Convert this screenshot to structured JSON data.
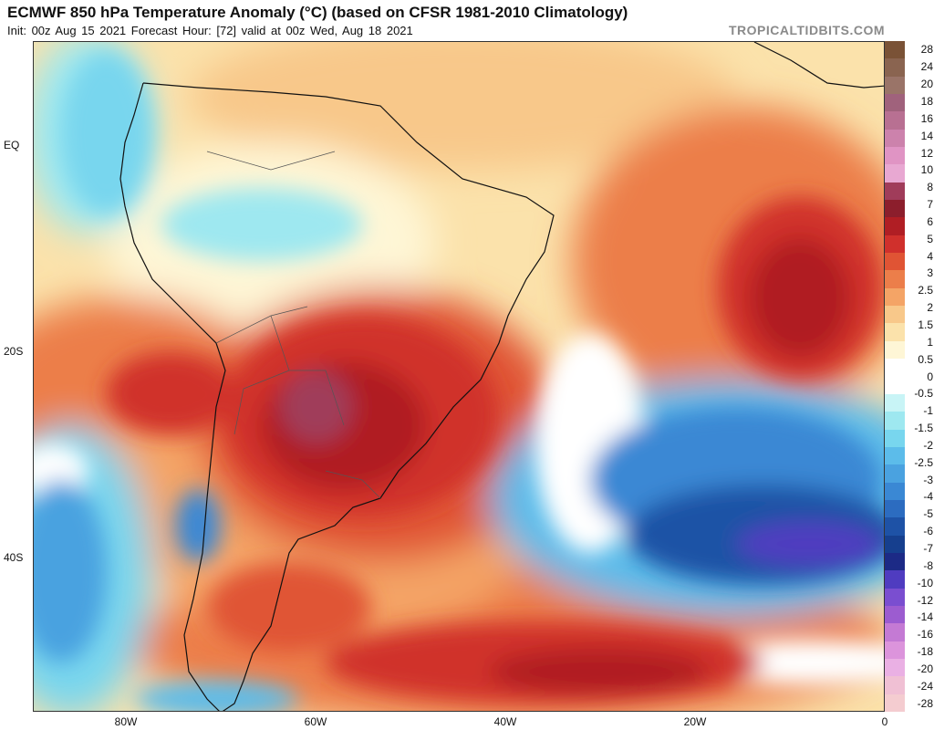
{
  "header": {
    "title": "ECMWF 850 hPa Temperature Anomaly (°C) (based on CFSR 1981-2010 Climatology)",
    "subtitle": "Init: 00z Aug 15 2021   Forecast Hour: [72]   valid at 00z Wed, Aug 18 2021",
    "brand": "TROPICALTIDBITS.COM"
  },
  "axes": {
    "lat_labels": [
      {
        "text": "EQ"
      },
      {
        "text": "20S"
      },
      {
        "text": "40S"
      }
    ],
    "lon_labels": [
      {
        "text": "80W"
      },
      {
        "text": "60W"
      },
      {
        "text": "40W"
      },
      {
        "text": "20W"
      },
      {
        "text": "0"
      }
    ]
  },
  "colorbar": {
    "labels": [
      "28",
      "24",
      "20",
      "18",
      "16",
      "14",
      "12",
      "10",
      "8",
      "7",
      "6",
      "5",
      "4",
      "3",
      "2.5",
      "2",
      "1.5",
      "1",
      "0.5",
      "0",
      "-0.5",
      "-1",
      "-1.5",
      "-2",
      "-2.5",
      "-3",
      "-4",
      "-5",
      "-6",
      "-7",
      "-8",
      "-10",
      "-12",
      "-14",
      "-16",
      "-18",
      "-20",
      "-24",
      "-28"
    ],
    "colors": [
      "#7a5236",
      "#8a6450",
      "#9a7468",
      "#a0627c",
      "#b87092",
      "#cc82ac",
      "#e094c4",
      "#e8a8d2",
      "#a03c5a",
      "#8c1e2c",
      "#b01e24",
      "#d0302c",
      "#e05434",
      "#ec7e4a",
      "#f4a466",
      "#f8c88a",
      "#fbe2ab",
      "#fef6d6",
      "#ffffff",
      "#ffffff",
      "#c8f4f6",
      "#9ee8f0",
      "#78d6ee",
      "#5cbcea",
      "#4aa2e0",
      "#3a88d4",
      "#2c6cc0",
      "#1e52a6",
      "#163f8e",
      "#1c2a86",
      "#4f3cc0",
      "#7a4ed0",
      "#9c5cd0",
      "#c47ad4",
      "#dc94dc",
      "#eab0e4",
      "#f0c0d4",
      "#f4ccd0"
    ]
  },
  "map": {
    "region": "South America and South Atlantic",
    "field": "850 hPa temperature anomaly"
  }
}
